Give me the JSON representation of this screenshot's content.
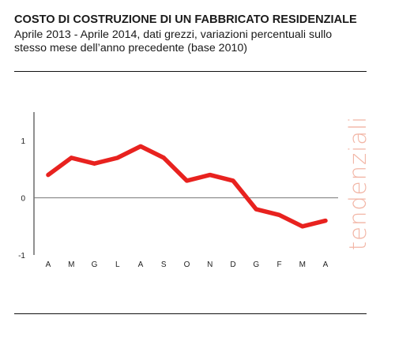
{
  "header": {
    "title": "COSTO DI COSTRUZIONE DI UN FABBRICATO RESIDENZIALE",
    "subtitle": "Aprile 2013 - Aprile 2014, dati grezzi, variazioni percentuali sullo stesso mese dell’anno precedente (base 2010)"
  },
  "side_label": "tendenziali",
  "chart_data": {
    "type": "line",
    "categories": [
      "A",
      "M",
      "G",
      "L",
      "A",
      "S",
      "O",
      "N",
      "D",
      "G",
      "F",
      "M",
      "A"
    ],
    "series": [
      {
        "values": [
          0.4,
          0.7,
          0.6,
          0.7,
          0.9,
          0.7,
          0.3,
          0.4,
          0.3,
          -0.2,
          -0.3,
          -0.5,
          -0.4
        ],
        "color": "#e8221f"
      }
    ],
    "yticks": [
      "1",
      "0",
      "-1"
    ],
    "ylim": [
      -1,
      1.5
    ],
    "zero_line": true,
    "grid": false,
    "legend": "none"
  }
}
